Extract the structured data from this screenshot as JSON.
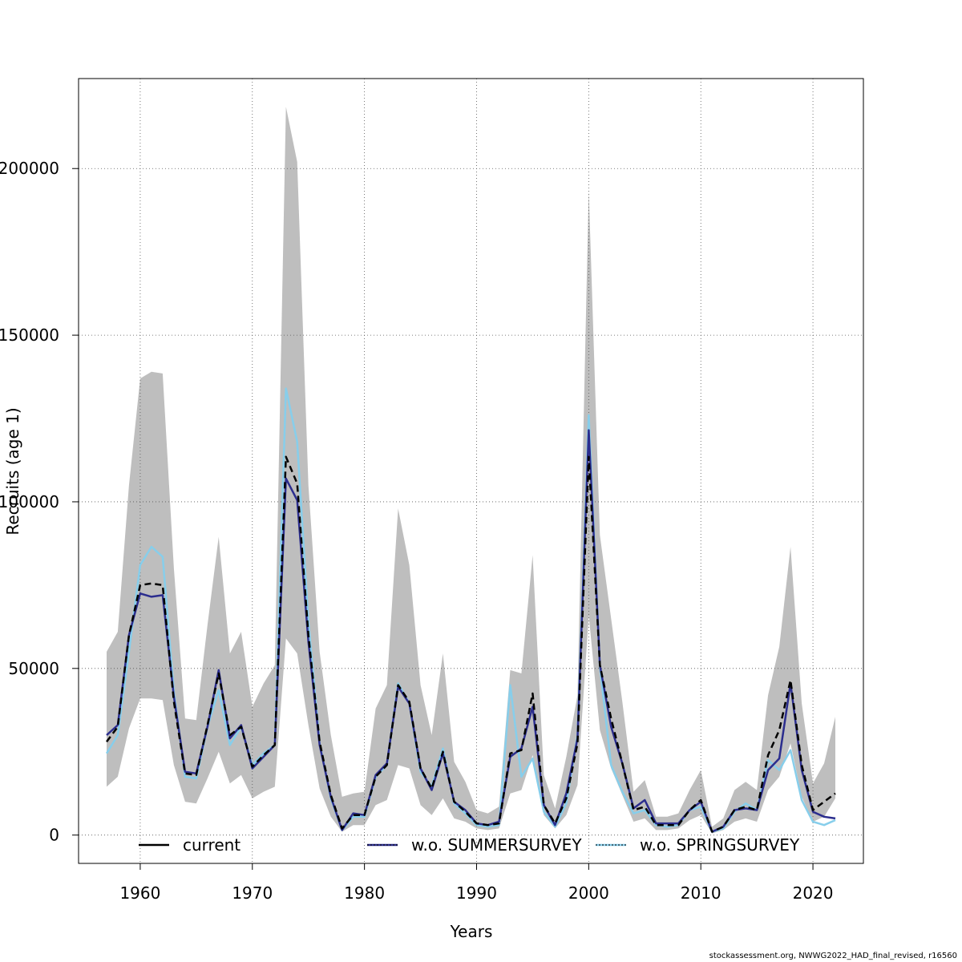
{
  "chart_data": {
    "type": "line",
    "xlabel": "Years",
    "ylabel": "Recruits (age 1)",
    "xlim": [
      1954.5,
      2024.5
    ],
    "ylim": [
      -8500,
      227000
    ],
    "x_ticks": [
      1960,
      1970,
      1980,
      1990,
      2000,
      2010,
      2020
    ],
    "y_ticks": [
      0,
      50000,
      100000,
      150000,
      200000
    ],
    "grid": true,
    "legend_position": "bottom",
    "x": [
      1957,
      1958,
      1959,
      1960,
      1961,
      1962,
      1963,
      1964,
      1965,
      1966,
      1967,
      1968,
      1969,
      1970,
      1971,
      1972,
      1973,
      1974,
      1975,
      1976,
      1977,
      1978,
      1979,
      1980,
      1981,
      1982,
      1983,
      1984,
      1985,
      1986,
      1987,
      1988,
      1989,
      1990,
      1991,
      1992,
      1993,
      1994,
      1995,
      1996,
      1997,
      1998,
      1999,
      2000,
      2001,
      2002,
      2003,
      2004,
      2005,
      2006,
      2007,
      2008,
      2009,
      2010,
      2011,
      2012,
      2013,
      2014,
      2015,
      2016,
      2017,
      2018,
      2019,
      2020,
      2021,
      2022
    ],
    "band": {
      "color": "#bebebe",
      "upper": [
        55000,
        61000,
        105000,
        137000,
        139000,
        138500,
        80000,
        35000,
        34500,
        63000,
        89500,
        54500,
        61000,
        38500,
        45500,
        51000,
        218500,
        202000,
        105000,
        55000,
        30000,
        11500,
        12500,
        13000,
        38000,
        45000,
        98000,
        81000,
        45000,
        30000,
        54500,
        22000,
        16000,
        7500,
        6500,
        8500,
        49500,
        48500,
        84000,
        18000,
        8000,
        23500,
        42000,
        193500,
        90000,
        65000,
        40000,
        13000,
        16500,
        5500,
        5500,
        6500,
        13500,
        19500,
        2500,
        5000,
        13500,
        16000,
        13500,
        42000,
        56500,
        86500,
        39500,
        15500,
        21500,
        35500
      ],
      "lower": [
        14500,
        17500,
        32000,
        41000,
        41000,
        40500,
        21000,
        10000,
        9500,
        17000,
        25000,
        15500,
        18000,
        11000,
        13000,
        14500,
        59000,
        54500,
        33000,
        14000,
        5500,
        1000,
        3000,
        3000,
        9000,
        10500,
        21000,
        20000,
        9000,
        6000,
        11000,
        5000,
        4000,
        2000,
        1500,
        2000,
        12500,
        13500,
        24000,
        6000,
        2000,
        6000,
        15000,
        66000,
        31500,
        20000,
        12000,
        4000,
        5000,
        1500,
        1500,
        2000,
        4500,
        6000,
        500,
        1500,
        4000,
        5000,
        4000,
        13500,
        17500,
        27500,
        11500,
        4000,
        5500,
        11000
      ]
    },
    "series": [
      {
        "name": "current",
        "color": "#000000",
        "dash": "8,5",
        "width": 2.5,
        "values": [
          28000,
          32500,
          60000,
          75000,
          75500,
          75000,
          40000,
          18500,
          18000,
          33000,
          48500,
          30000,
          32500,
          20500,
          24000,
          27000,
          113500,
          105500,
          60000,
          28000,
          12000,
          2000,
          6000,
          6000,
          17500,
          21000,
          45000,
          40000,
          20000,
          14000,
          25000,
          10000,
          7000,
          3500,
          3000,
          3500,
          24500,
          25500,
          42500,
          9000,
          3500,
          11000,
          27500,
          113500,
          51000,
          35000,
          21500,
          7500,
          8500,
          3000,
          3000,
          3000,
          7500,
          10500,
          1000,
          2500,
          7500,
          8500,
          7500,
          24000,
          31500,
          46500,
          21000,
          7500,
          10000,
          12500
        ]
      },
      {
        "name": "w.o. SUMMERSURVEY",
        "color": "#2b2d8e",
        "dash": "",
        "width": 2.5,
        "values": [
          30000,
          33000,
          60000,
          72500,
          71500,
          72000,
          41500,
          19000,
          18500,
          32500,
          49500,
          29000,
          33000,
          20000,
          23500,
          27000,
          107000,
          100500,
          58000,
          27000,
          11500,
          1500,
          6500,
          6000,
          18000,
          21500,
          44500,
          39500,
          20000,
          13500,
          24500,
          10000,
          7500,
          3500,
          3000,
          4000,
          23500,
          26000,
          38500,
          9000,
          3000,
          12500,
          29000,
          121500,
          51000,
          32500,
          21500,
          8000,
          10500,
          3500,
          3500,
          3500,
          7500,
          10000,
          1000,
          2500,
          7500,
          8000,
          7500,
          19500,
          23000,
          45500,
          19500,
          7000,
          5500,
          5000
        ]
      },
      {
        "name": "w.o. SPRINGSURVEY",
        "color": "#87ceeb",
        "dash": "",
        "width": 2.5,
        "values": [
          24500,
          30000,
          55000,
          81000,
          86500,
          83500,
          43000,
          17500,
          17000,
          32500,
          43500,
          27000,
          32500,
          21000,
          24500,
          27000,
          134000,
          118000,
          64000,
          27500,
          11000,
          1500,
          5500,
          5500,
          17500,
          21000,
          45500,
          39500,
          19000,
          14500,
          26000,
          9500,
          6500,
          3000,
          2500,
          3000,
          45000,
          17500,
          23000,
          7000,
          2500,
          9500,
          30000,
          126000,
          50500,
          21000,
          13000,
          6500,
          7500,
          3000,
          2500,
          3000,
          7500,
          8500,
          1000,
          2000,
          7000,
          9500,
          7500,
          22500,
          19500,
          25500,
          10500,
          4000,
          3000,
          4500
        ]
      }
    ],
    "legend": [
      {
        "label": "current",
        "line_color": "#000000",
        "dot_color": ""
      },
      {
        "label": "w.o. SUMMERSURVEY",
        "line_color": "#2b2d8e",
        "dot_color": "#000000"
      },
      {
        "label": "w.o. SPRINGSURVEY",
        "line_color": "#87ceeb",
        "dot_color": "#000000"
      }
    ]
  },
  "footer": "stockassessment.org, NWWG2022_HAD_final_revised, r16560"
}
